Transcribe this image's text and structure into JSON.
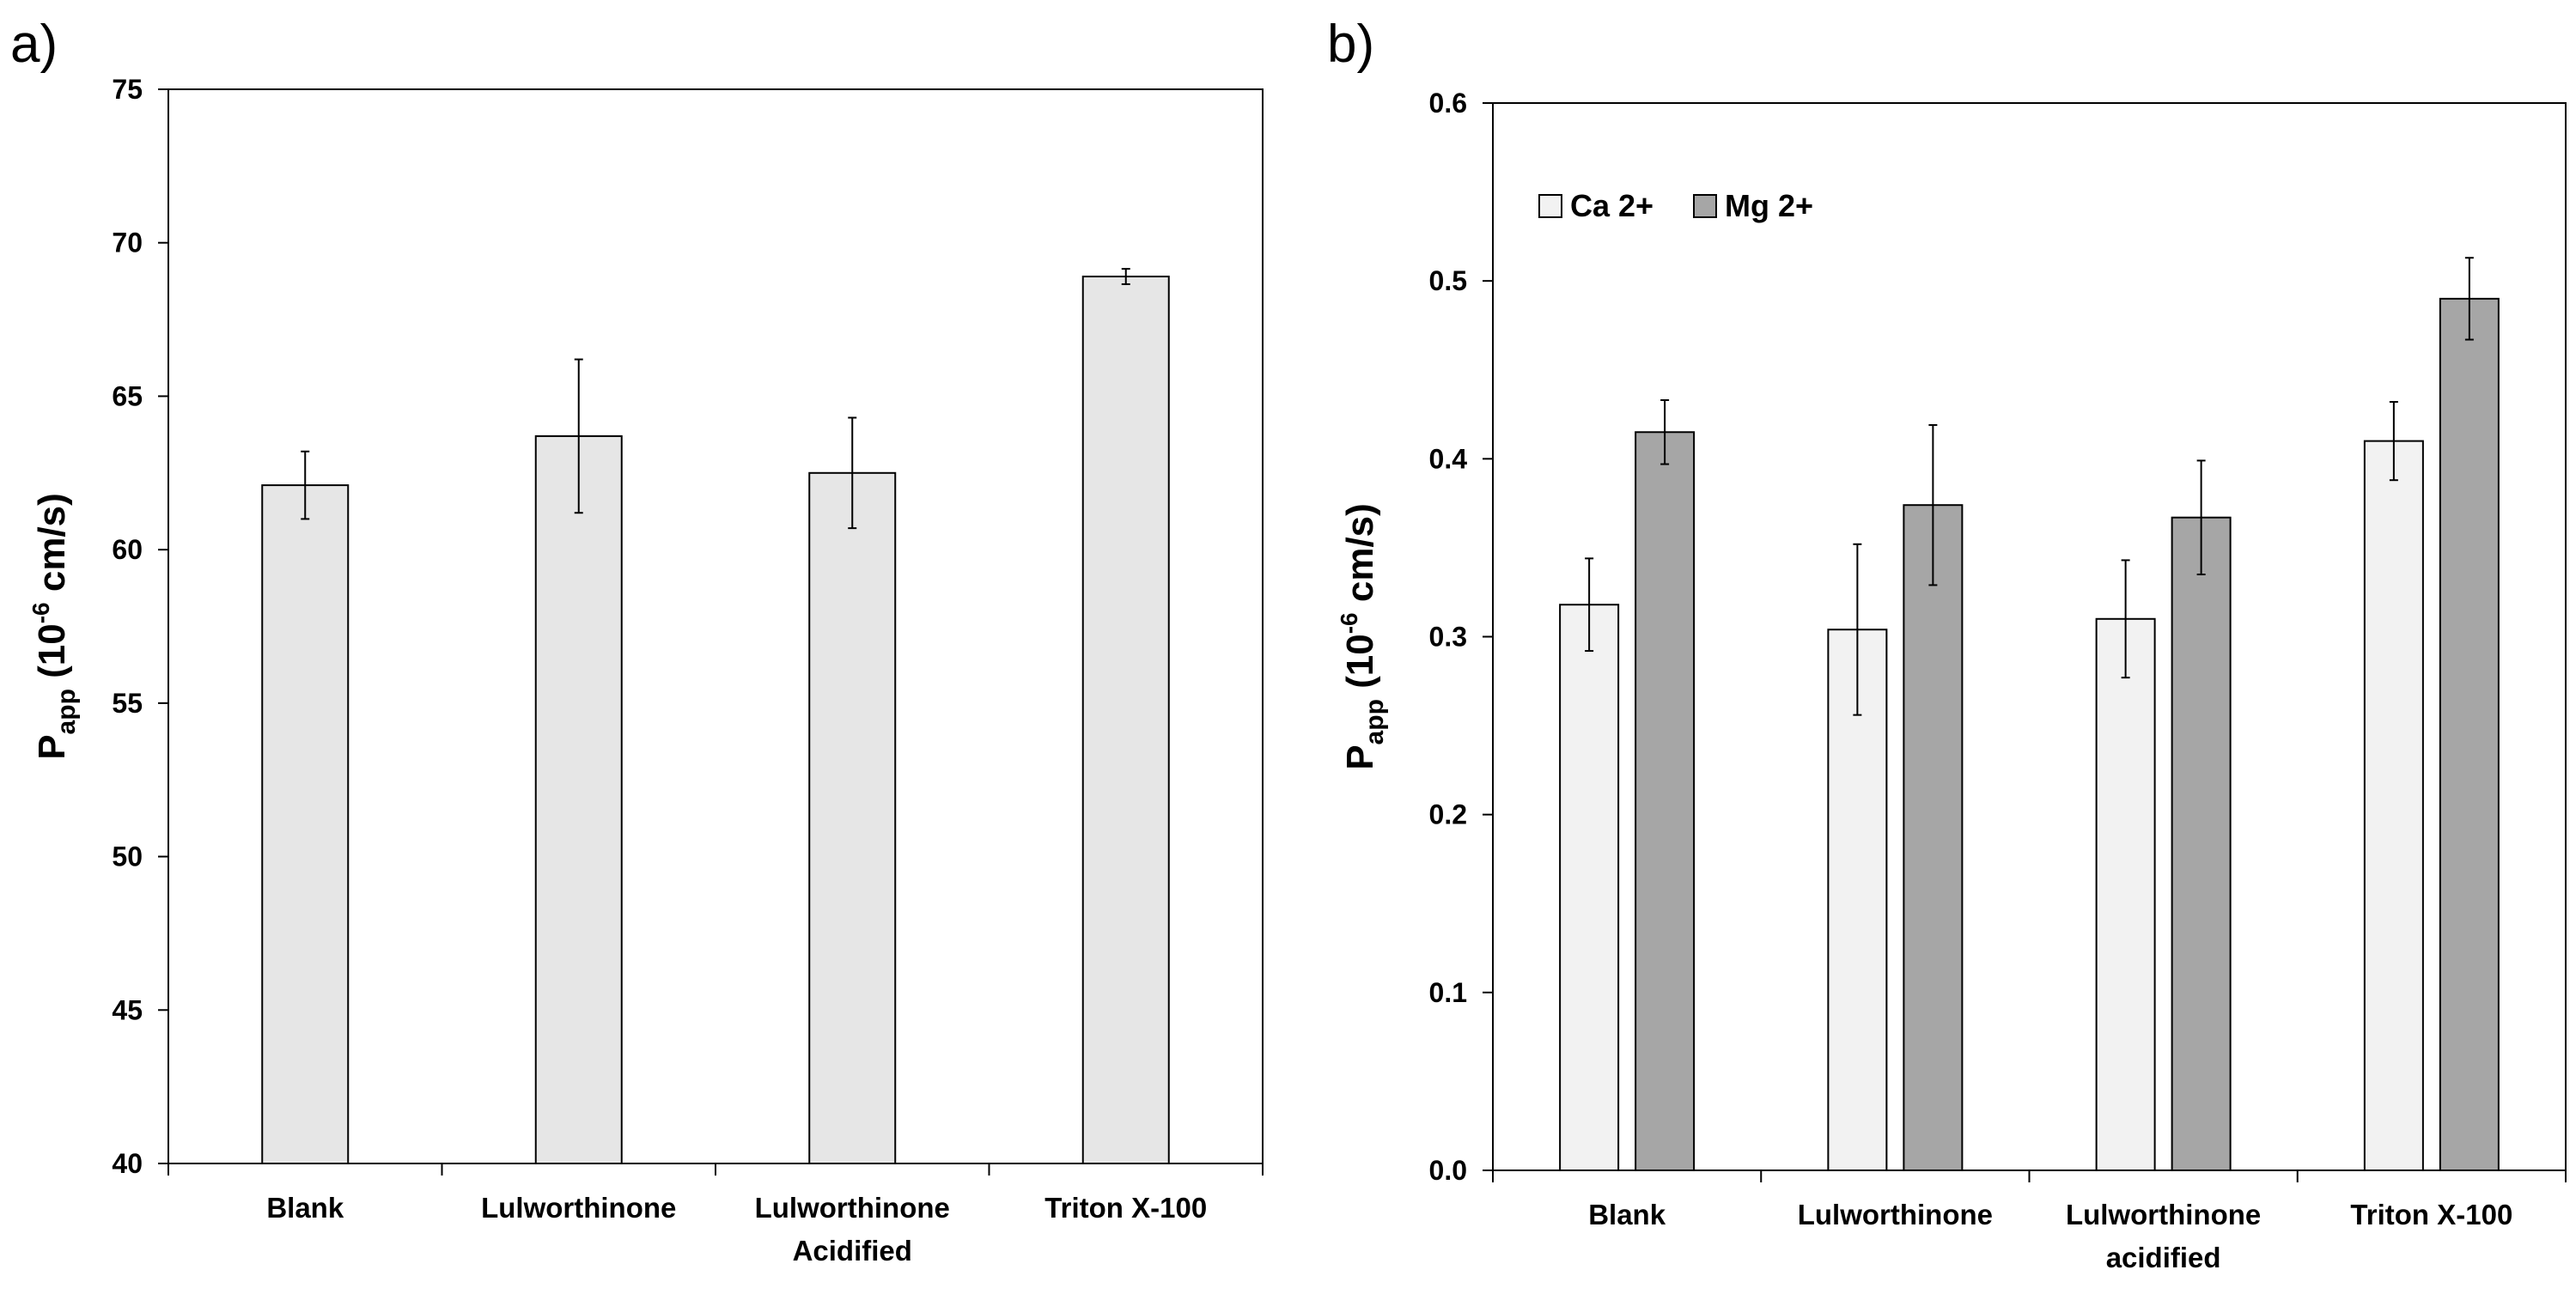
{
  "colors": {
    "panel_a_bar": "#e6e6e6",
    "ca_bar": "#f2f2f2",
    "mg_bar": "#a6a6a6",
    "axis": "#000000"
  },
  "chart_data": [
    {
      "panel": "a)",
      "type": "bar",
      "categories": [
        "Blank",
        "Lulworthinone",
        "Lulworthinone\nAcidified",
        "Triton X-100"
      ],
      "series": [
        {
          "name": "Papp",
          "values": [
            62.1,
            63.7,
            62.5,
            68.9
          ],
          "errors": [
            1.1,
            2.5,
            1.8,
            0.25
          ]
        }
      ],
      "ylim": [
        40,
        75
      ],
      "yticks": [
        "40",
        "45",
        "50",
        "55",
        "60",
        "65",
        "70",
        "75"
      ],
      "ylabel": {
        "main": "P",
        "sub": "app",
        "pre": " (10",
        "sup": "-6",
        "post": " cm/s)"
      },
      "legend": false
    },
    {
      "panel": "b)",
      "type": "bar",
      "categories": [
        "Blank",
        "Lulworthinone",
        "Lulworthinone\nacidified",
        "Triton X-100"
      ],
      "series": [
        {
          "name": "Ca 2+",
          "values": [
            0.318,
            0.304,
            0.31,
            0.41
          ],
          "errors": [
            0.026,
            0.048,
            0.033,
            0.022
          ]
        },
        {
          "name": "Mg 2+",
          "values": [
            0.415,
            0.374,
            0.367,
            0.49
          ],
          "errors": [
            0.018,
            0.045,
            0.032,
            0.023
          ]
        }
      ],
      "ylim": [
        0,
        0.6
      ],
      "yticks": [
        "0.0",
        "0.1",
        "0.2",
        "0.3",
        "0.4",
        "0.5",
        "0.6"
      ],
      "ylabel": {
        "main": "P",
        "sub": "app",
        "pre": " (10",
        "sup": "-6",
        "post": " cm/s)"
      },
      "legend": "top-left"
    }
  ]
}
